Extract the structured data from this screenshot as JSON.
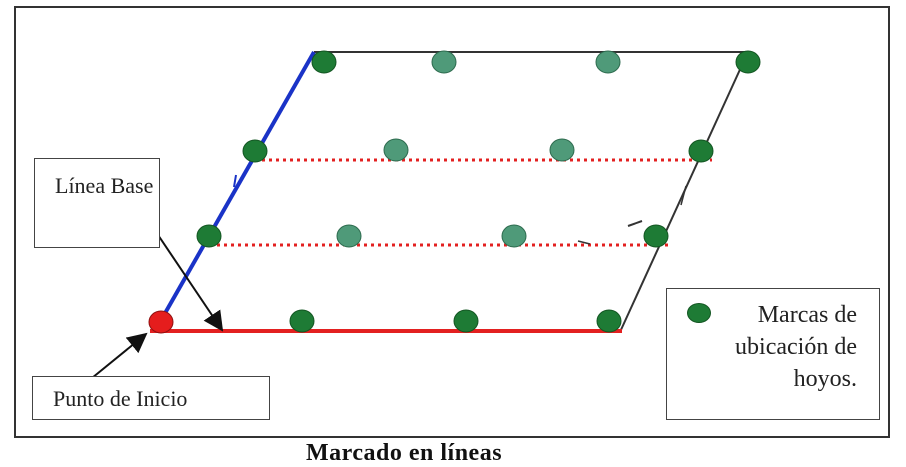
{
  "labels": {
    "base_line": "Línea Base",
    "start_point": "Punto de Inicio",
    "legend": "Marcas de ubicación de hoyos.",
    "caption": "Marcado en líneas"
  },
  "colors": {
    "frame": "#333333",
    "base_line": "#e32020",
    "side_line": "#1a33c7",
    "dotted_row": "#e32020",
    "marker_dark": "#1e7b35",
    "marker_light": "#4f9a79",
    "start_point": "#e51d1d"
  },
  "icons": [
    "arrow-icon",
    "hole-marker-icon"
  ]
}
